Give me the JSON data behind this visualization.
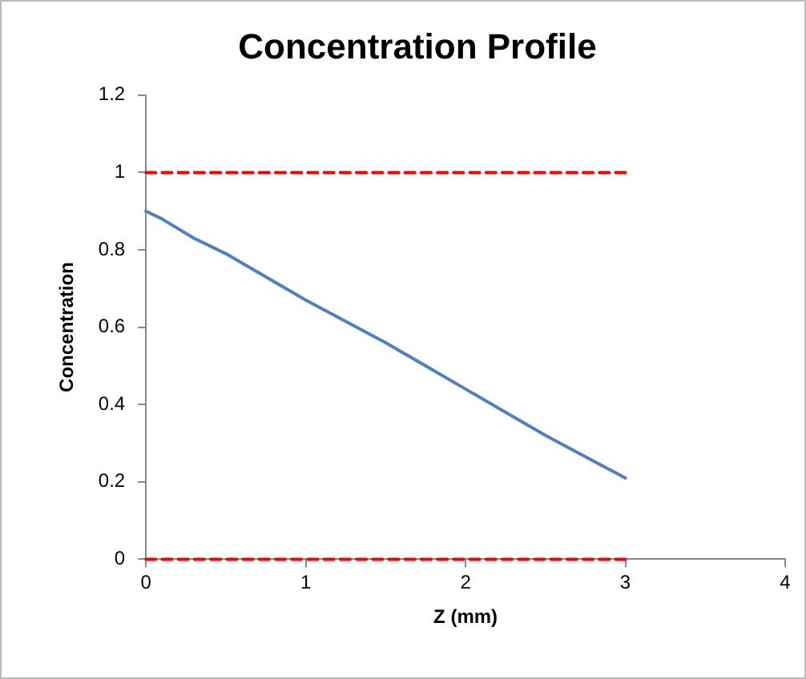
{
  "chart_data": {
    "type": "line",
    "title": "Concentration Profile",
    "xlabel": "Z (mm)",
    "ylabel": "Concentration",
    "xlim": [
      0,
      4
    ],
    "xticks": [
      0,
      1,
      2,
      3,
      4
    ],
    "ylim": [
      0,
      1.2
    ],
    "yticks": [
      0,
      0.2,
      0.4,
      0.6,
      0.8,
      1,
      1.2
    ],
    "grid": false,
    "legend": false,
    "marker": "none",
    "series": [
      {
        "color": "#4f81bd",
        "x": [
          0,
          0.1,
          0.3,
          0.5,
          1,
          1.5,
          2,
          2.5,
          3
        ],
        "values": [
          0.9,
          0.88,
          0.83,
          0.79,
          0.67,
          0.56,
          0.44,
          0.32,
          0.21
        ]
      },
      {
        "color": "#ff0000",
        "line_style": "dashed",
        "x": [
          0,
          3
        ],
        "values": [
          1,
          1
        ]
      },
      {
        "color": "#ff0000",
        "line_style": "dashed",
        "x": [
          0,
          3
        ],
        "values": [
          0,
          0
        ]
      }
    ]
  }
}
